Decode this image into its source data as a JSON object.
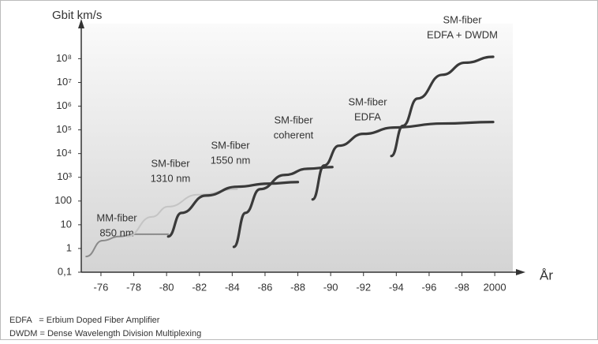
{
  "chart_data": {
    "type": "line",
    "ylabel": "Gbit km/s",
    "xlabel": "År",
    "yscale": "log",
    "xlim": [
      1974.8,
      2001.1
    ],
    "ylim": [
      0.1,
      3000000000
    ],
    "xticks": [
      {
        "value": 1976,
        "label": "-76"
      },
      {
        "value": 1978,
        "label": "-78"
      },
      {
        "value": 1980,
        "label": "-80"
      },
      {
        "value": 1982,
        "label": "-82"
      },
      {
        "value": 1984,
        "label": "-84"
      },
      {
        "value": 1986,
        "label": "-86"
      },
      {
        "value": 1988,
        "label": "-88"
      },
      {
        "value": 1990,
        "label": "-90"
      },
      {
        "value": 1992,
        "label": "-92"
      },
      {
        "value": 1994,
        "label": "-94"
      },
      {
        "value": 1996,
        "label": "-96"
      },
      {
        "value": 1998,
        "label": "-98"
      },
      2000
    ],
    "yticks": [
      {
        "value": 0.1,
        "label": "0,1"
      },
      1,
      10,
      100,
      {
        "value": 1000,
        "label": "10³"
      },
      {
        "value": 10000,
        "label": "10⁴"
      },
      {
        "value": 100000,
        "label": "10⁵"
      },
      {
        "value": 1000000,
        "label": "10⁶"
      },
      {
        "value": 10000000,
        "label": "10⁷"
      },
      {
        "value": 100000000,
        "label": "10⁸"
      }
    ],
    "series": [
      {
        "label": [
          "MM-fiber",
          "850 nm"
        ],
        "color": "#8a8a8a",
        "x": [
          1975.1,
          1976.1,
          1977.1,
          1978.1,
          1980.1
        ],
        "values": [
          0.46,
          2.15,
          3.2,
          4,
          4
        ]
      },
      {
        "color": "#c4c4c4",
        "x": [
          1977.6,
          1979.1,
          1980.1,
          1981.9,
          1984.3
        ],
        "values": [
          3.2,
          21.5,
          58,
          185,
          316
        ]
      },
      {
        "label": [
          "SM-fiber",
          "1310 nm"
        ],
        "color": "#3a3a3a",
        "x": [
          1980.1,
          1980.9,
          1982.4,
          1984.3,
          1986.2,
          1988
        ],
        "values": [
          3.2,
          31.6,
          170,
          400,
          540,
          630
        ]
      },
      {
        "label": [
          "SM-fiber",
          "1550 nm"
        ],
        "color": "#3a3a3a",
        "x": [
          1984.1,
          1984.8,
          1985.7,
          1987.2,
          1988.6,
          1990.1
        ],
        "values": [
          1.17,
          31.6,
          316,
          1260,
          2300,
          2700
        ]
      },
      {
        "label": [
          "SM-fiber",
          "coherent"
        ],
        "color": "#3a3a3a",
        "x": [
          1988.9,
          1989.6,
          1990.5,
          1992,
          1993.9,
          1996.8,
          1999.9
        ],
        "values": [
          117,
          3160,
          21500,
          68000,
          126000,
          185000,
          215000
        ]
      },
      {
        "label": [
          "SM-fiber",
          "EDFA"
        ],
        "color": "#3a3a3a",
        "x": [
          1993.7,
          1994.4,
          1995.3,
          1996.8,
          1998.2,
          1999.9
        ],
        "values": [
          7900,
          148000,
          2100000,
          21000000,
          68000000,
          120000000
        ]
      }
    ],
    "extra_label": [
      "SM-fiber",
      "EDFA + DWDM"
    ],
    "footnotes": [
      "EDFA   = Erbium Doped Fiber Amplifier",
      "DWDM = Dense Wavelength Division Multiplexing"
    ]
  }
}
